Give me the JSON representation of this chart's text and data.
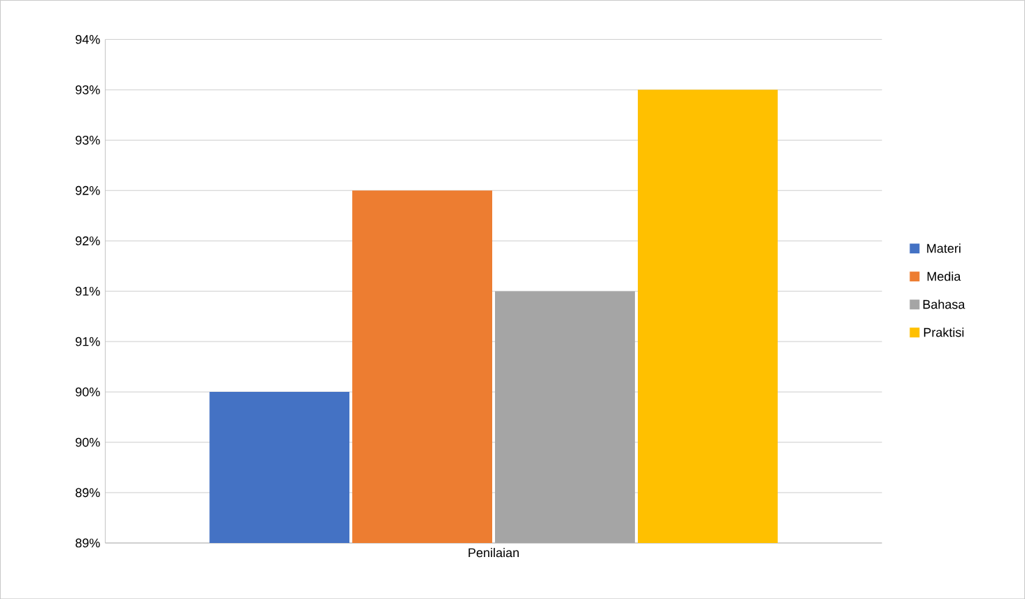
{
  "chart_data": {
    "type": "bar",
    "categories": [
      "Penilaian"
    ],
    "series": [
      {
        "name": "Materi",
        "color": "#4472c4",
        "values": [
          90
        ]
      },
      {
        "name": "Media",
        "color": "#ed7d31",
        "values": [
          92
        ]
      },
      {
        "name": "Bahasa",
        "color": "#a5a5a5",
        "values": [
          91
        ]
      },
      {
        "name": "Praktisi",
        "color": "#ffc000",
        "values": [
          93
        ]
      }
    ],
    "ylim": [
      88.5,
      93.5
    ],
    "yticks": [
      {
        "value": 88.5,
        "label": "89%"
      },
      {
        "value": 89,
        "label": "89%"
      },
      {
        "value": 89.5,
        "label": "90%"
      },
      {
        "value": 90,
        "label": "90%"
      },
      {
        "value": 90.5,
        "label": "91%"
      },
      {
        "value": 91,
        "label": "91%"
      },
      {
        "value": 91.5,
        "label": "92%"
      },
      {
        "value": 92,
        "label": "92%"
      },
      {
        "value": 92.5,
        "label": "93%"
      },
      {
        "value": 93,
        "label": "93%"
      },
      {
        "value": 93.5,
        "label": "94%"
      }
    ],
    "grid": "y",
    "legend": "right"
  }
}
